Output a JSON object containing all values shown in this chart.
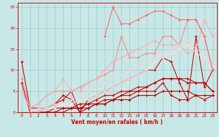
{
  "xlabel": "Vent moyen/en rafales ( km/h )",
  "xlim": [
    -0.5,
    23.5
  ],
  "ylim": [
    0,
    26
  ],
  "yticks": [
    0,
    5,
    10,
    15,
    20,
    25
  ],
  "xticks": [
    0,
    1,
    2,
    3,
    4,
    5,
    6,
    7,
    8,
    9,
    10,
    11,
    12,
    13,
    14,
    15,
    16,
    17,
    18,
    19,
    20,
    21,
    22,
    23
  ],
  "bg_color": "#c8e8e8",
  "grid_color": "#a0c8c8",
  "lines": [
    {
      "x": [
        0,
        1,
        2,
        3,
        4,
        5,
        6,
        7,
        8,
        9,
        10,
        11,
        12,
        13,
        14,
        15,
        16,
        17,
        18,
        19,
        20,
        21,
        22,
        23
      ],
      "y": [
        7,
        0,
        0,
        1,
        2,
        4,
        3,
        0,
        1,
        2,
        2,
        3,
        4,
        4,
        5,
        5,
        5,
        7,
        4,
        3,
        3,
        4,
        3,
        4
      ],
      "color": "#cc0000",
      "lw": 0.8,
      "marker": "+",
      "ms": 3.0
    },
    {
      "x": [
        0,
        1,
        2,
        3,
        4,
        5,
        6,
        7,
        8,
        9,
        10,
        11,
        12,
        13,
        14,
        15,
        16,
        17,
        18,
        19,
        20,
        21,
        22,
        23
      ],
      "y": [
        12,
        1,
        1,
        1,
        2,
        3,
        5,
        0,
        3,
        4,
        5,
        6,
        7,
        8,
        9,
        10,
        10,
        13,
        12,
        7,
        3,
        18,
        6,
        10
      ],
      "color": "#cc0000",
      "lw": 0.8,
      "marker": "+",
      "ms": 3.0
    },
    {
      "x": [
        0,
        1,
        2,
        3,
        4,
        5,
        6,
        7,
        8,
        9,
        10,
        11,
        12,
        13,
        14,
        15,
        16,
        17,
        18,
        19,
        20,
        21,
        22,
        23
      ],
      "y": [
        0,
        0,
        0,
        0,
        1,
        1,
        1,
        2,
        2,
        3,
        4,
        4,
        5,
        5,
        6,
        6,
        7,
        8,
        8,
        8,
        8,
        7,
        7,
        5
      ],
      "color": "#cc0000",
      "lw": 0.8,
      "marker": "+",
      "ms": 3.0
    },
    {
      "x": [
        0,
        1,
        2,
        3,
        4,
        5,
        6,
        7,
        8,
        9,
        10,
        11,
        12,
        13,
        14,
        15,
        16,
        17,
        18,
        19,
        20,
        21,
        22,
        23
      ],
      "y": [
        0,
        0,
        0,
        0,
        0,
        1,
        1,
        1,
        1,
        2,
        2,
        3,
        3,
        3,
        4,
        4,
        4,
        5,
        5,
        5,
        5,
        4,
        4,
        4
      ],
      "color": "#aa0000",
      "lw": 0.8,
      "marker": "+",
      "ms": 3.0
    },
    {
      "x": [
        0,
        1,
        2,
        3,
        4,
        5,
        6,
        7,
        8,
        9,
        10,
        11,
        12,
        13,
        14,
        15,
        16,
        17,
        18,
        19,
        20,
        21,
        22,
        23
      ],
      "y": [
        0,
        0,
        0,
        0,
        0,
        0,
        1,
        1,
        2,
        2,
        3,
        3,
        4,
        5,
        5,
        6,
        7,
        8,
        8,
        8,
        7,
        7,
        7,
        5
      ],
      "color": "#bb0000",
      "lw": 0.8,
      "marker": "+",
      "ms": 3.0
    },
    {
      "x": [
        0,
        1,
        2,
        3,
        4,
        5,
        6,
        7,
        8,
        9,
        10,
        11,
        12,
        13,
        14,
        15,
        16,
        17,
        18,
        19,
        20,
        21,
        22,
        23
      ],
      "y": [
        8,
        1,
        2,
        4,
        5,
        5,
        5,
        6,
        7,
        8,
        9,
        10,
        18,
        13,
        13,
        14,
        14,
        18,
        18,
        16,
        22,
        22,
        18,
        10
      ],
      "color": "#ff8888",
      "lw": 0.8,
      "marker": "+",
      "ms": 3.0
    },
    {
      "x": [
        0,
        1,
        2,
        3,
        4,
        5,
        6,
        7,
        8,
        9,
        10,
        11,
        12,
        13,
        14,
        15,
        16,
        17,
        18,
        19,
        20,
        21,
        22,
        23
      ],
      "y": [
        5,
        1,
        2,
        4,
        5,
        8,
        5,
        5,
        7,
        8,
        10,
        12,
        13,
        14,
        15,
        16,
        17,
        16,
        16,
        16,
        14,
        15,
        22,
        18
      ],
      "color": "#ffaaaa",
      "lw": 0.8,
      "marker": "+",
      "ms": 3.0
    },
    {
      "x": [
        0,
        1,
        2,
        3,
        4,
        5,
        6,
        7,
        8,
        9,
        10,
        11,
        12,
        13,
        14,
        15,
        16,
        17,
        18,
        19,
        20,
        21,
        22,
        23
      ],
      "y": [
        0,
        0,
        1,
        1,
        2,
        2,
        3,
        4,
        5,
        6,
        7,
        8,
        9,
        10,
        11,
        12,
        13,
        14,
        15,
        16,
        17,
        15,
        14,
        11
      ],
      "color": "#ffcccc",
      "lw": 0.8,
      "marker": "+",
      "ms": 3.0
    },
    {
      "x": [
        0,
        1,
        2,
        3,
        4,
        5,
        6,
        7,
        8,
        9,
        10,
        11,
        12,
        13,
        14,
        15,
        16,
        17,
        18,
        19,
        20,
        21,
        22,
        23
      ],
      "y": [
        0,
        0,
        0,
        1,
        1,
        2,
        2,
        3,
        3,
        4,
        5,
        6,
        7,
        8,
        9,
        10,
        12,
        13,
        14,
        15,
        16,
        14,
        13,
        10
      ],
      "color": "#ffdddd",
      "lw": 0.8,
      "marker": "+",
      "ms": 3.0
    },
    {
      "x": [
        10,
        11,
        12,
        13,
        14,
        15,
        16,
        17,
        18,
        19,
        20,
        21,
        22,
        23
      ],
      "y": [
        18,
        25,
        21,
        21,
        22,
        23,
        24,
        24,
        23,
        22,
        22,
        22,
        18,
        10
      ],
      "color": "#ff6666",
      "lw": 0.8,
      "marker": "+",
      "ms": 3.0
    }
  ]
}
